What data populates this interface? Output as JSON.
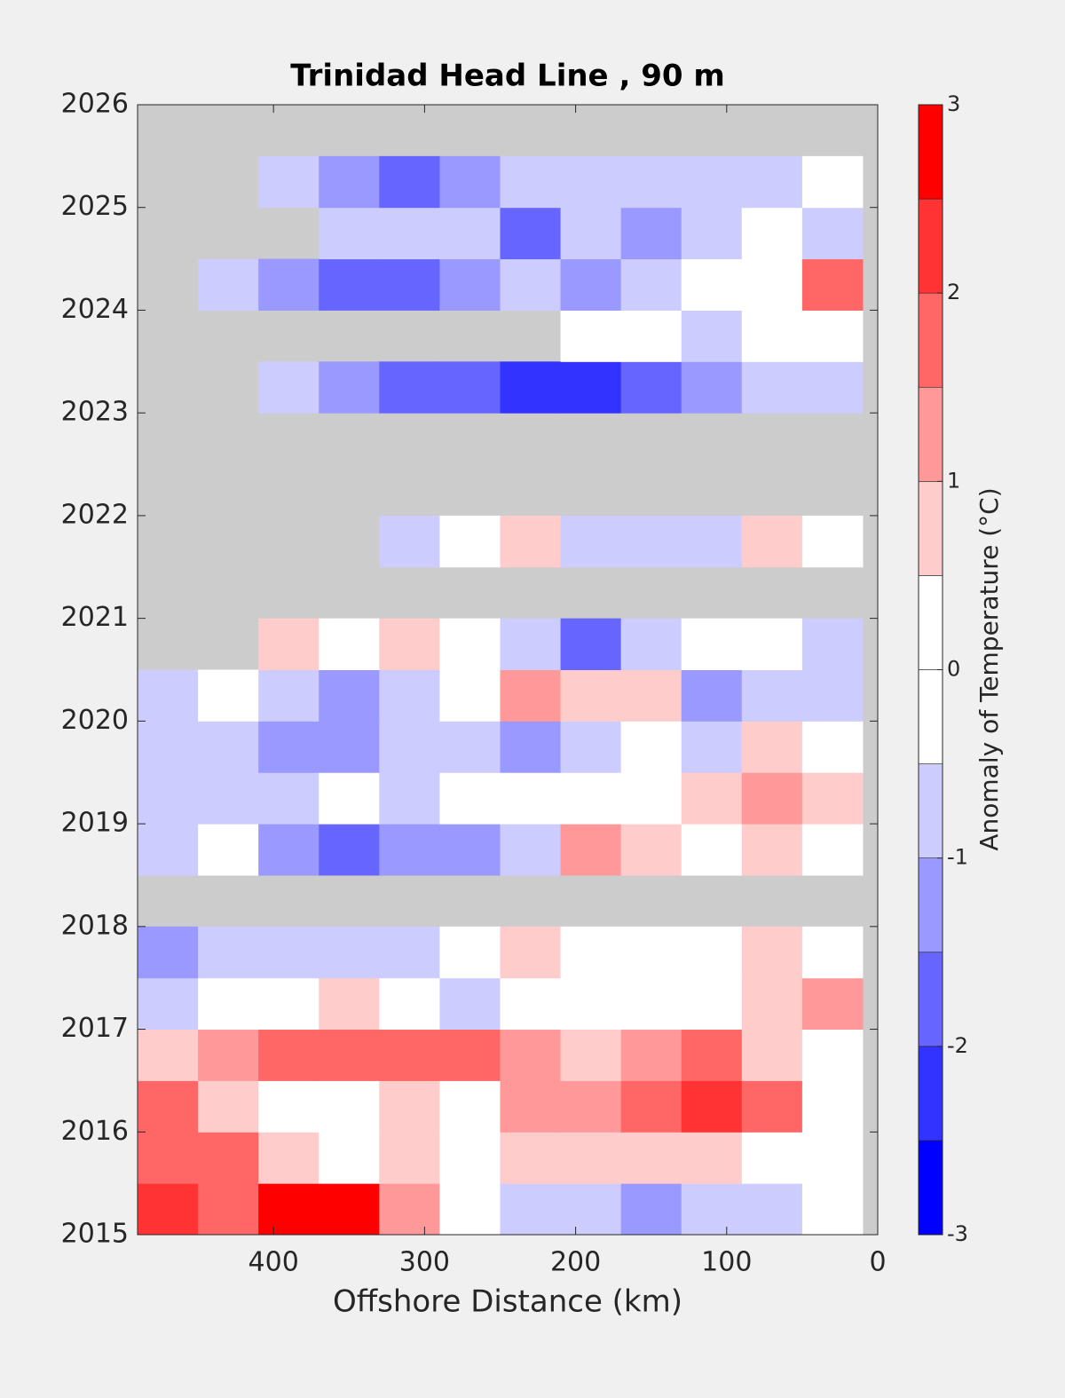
{
  "chart_data": {
    "type": "heatmap",
    "title": "Trinidad Head Line , 90 m",
    "xlabel": "Offshore Distance (km)",
    "colorbar_label": "Anomaly of Temperature (°C)",
    "xlim": [
      490,
      0
    ],
    "ylim": [
      2015,
      2026
    ],
    "xticks": [
      400,
      300,
      200,
      100,
      0
    ],
    "yticks": [
      2015,
      2016,
      2017,
      2018,
      2019,
      2020,
      2021,
      2022,
      2023,
      2024,
      2025,
      2026
    ],
    "x": [
      470,
      430,
      390,
      350,
      310,
      270,
      230,
      190,
      150,
      110,
      70,
      30
    ],
    "y": [
      2015.25,
      2015.75,
      2016.25,
      2016.75,
      2017.25,
      2017.75,
      2018.25,
      2018.75,
      2019.25,
      2019.75,
      2020.25,
      2020.75,
      2021.25,
      2021.75,
      2022.25,
      2022.75,
      2023.25,
      2023.75,
      2024.25,
      2024.75,
      2025.25,
      2025.75
    ],
    "z": [
      [
        2.2,
        1.7,
        2.7,
        2.7,
        1.2,
        0,
        -0.7,
        -0.7,
        -1.2,
        -0.7,
        -0.7,
        0
      ],
      [
        1.7,
        1.7,
        0.7,
        0,
        0.7,
        0,
        0.7,
        0.7,
        0.7,
        0.7,
        0,
        0
      ],
      [
        1.7,
        0.7,
        0,
        0,
        0.7,
        0,
        1.2,
        1.2,
        1.7,
        2.2,
        1.7,
        0
      ],
      [
        0.7,
        1.2,
        1.7,
        1.7,
        1.7,
        1.7,
        1.2,
        0.7,
        1.2,
        1.7,
        0.7,
        0
      ],
      [
        -0.7,
        0,
        0,
        0.7,
        0,
        -0.7,
        0,
        0,
        0,
        0,
        0.7,
        1.2
      ],
      [
        -1.2,
        -0.7,
        -0.7,
        -0.7,
        -0.7,
        0,
        0.7,
        0,
        0,
        0,
        0.7,
        0
      ],
      [
        null,
        null,
        null,
        null,
        null,
        null,
        null,
        null,
        null,
        null,
        null,
        null
      ],
      [
        -0.7,
        0,
        -1.2,
        -1.7,
        -1.2,
        -1.2,
        -0.7,
        1.2,
        0.7,
        0,
        0.7,
        0
      ],
      [
        -0.7,
        -0.7,
        -0.7,
        0,
        -0.7,
        0,
        0,
        0,
        0,
        0.7,
        1.2,
        0.7
      ],
      [
        -0.7,
        -0.7,
        -1.2,
        -1.2,
        -0.7,
        -0.7,
        -1.2,
        -0.7,
        0,
        -0.7,
        0.7,
        0
      ],
      [
        -0.7,
        0,
        -0.7,
        -1.2,
        -0.7,
        0,
        1.2,
        0.7,
        0.7,
        -1.2,
        -0.7,
        -0.7
      ],
      [
        null,
        null,
        0.7,
        0,
        0.7,
        0,
        -0.7,
        -1.7,
        -0.7,
        0,
        0,
        -0.7
      ],
      [
        null,
        null,
        null,
        null,
        null,
        null,
        null,
        null,
        null,
        null,
        null,
        null
      ],
      [
        null,
        null,
        null,
        null,
        -0.7,
        0,
        0.7,
        -0.7,
        -0.7,
        -0.7,
        0.7,
        0
      ],
      [
        null,
        null,
        null,
        null,
        null,
        null,
        null,
        null,
        null,
        null,
        null,
        null
      ],
      [
        null,
        null,
        null,
        null,
        null,
        null,
        null,
        null,
        null,
        null,
        null,
        null
      ],
      [
        null,
        null,
        -0.7,
        -1.2,
        -1.7,
        -1.7,
        -2.2,
        -2.2,
        -1.7,
        -1.2,
        -0.7,
        -0.7
      ],
      [
        null,
        null,
        null,
        null,
        null,
        null,
        null,
        0,
        0,
        -0.7,
        0,
        0
      ],
      [
        null,
        -0.7,
        -1.2,
        -1.7,
        -1.7,
        -1.2,
        -0.7,
        -1.2,
        -0.7,
        0,
        0,
        1.7
      ],
      [
        null,
        null,
        null,
        -0.7,
        -0.7,
        -0.7,
        -1.7,
        -0.7,
        -1.2,
        -0.7,
        0,
        -0.7
      ],
      [
        null,
        null,
        -0.7,
        -1.2,
        -1.7,
        -1.2,
        -0.7,
        -0.7,
        -0.7,
        -0.7,
        -0.7,
        0
      ],
      [
        null,
        null,
        null,
        null,
        null,
        null,
        null,
        null,
        null,
        null,
        null,
        null
      ]
    ],
    "levels": [
      -3,
      -2.5,
      -2,
      -1.5,
      -1,
      -0.5,
      0,
      0.5,
      1,
      1.5,
      2,
      2.5,
      3
    ],
    "colors": [
      "#0000ff",
      "#3333ff",
      "#6666ff",
      "#9999ff",
      "#ccccff",
      "#ffffff",
      "#ffffff",
      "#ffcccc",
      "#ff9999",
      "#ff6666",
      "#ff3333",
      "#ff0000"
    ],
    "missing_color": "#cccccc",
    "clim": [
      -3,
      3
    ],
    "cticks": [
      -3,
      -2,
      -1,
      0,
      1,
      2,
      3
    ]
  }
}
